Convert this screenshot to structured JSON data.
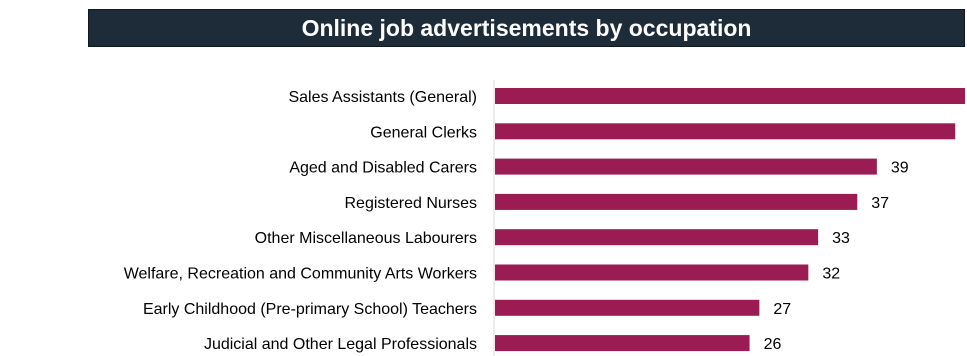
{
  "title": "Online job advertisements by occupation",
  "chart_data": {
    "type": "bar",
    "orientation": "horizontal",
    "title": "Online job advertisements by occupation",
    "categories": [
      "Sales Assistants (General)",
      "General Clerks",
      "Aged and Disabled Carers",
      "Registered Nurses",
      "Other Miscellaneous Labourers",
      "Welfare, Recreation and Community Arts Workers",
      "Early Childhood (Pre-primary School) Teachers",
      "Judicial and Other Legal Professionals"
    ],
    "values": [
      48,
      47,
      39,
      37,
      33,
      32,
      27,
      26
    ],
    "value_labels": [
      "",
      "",
      "39",
      "37",
      "33",
      "32",
      "27",
      "26"
    ],
    "xlim": [
      0,
      48
    ],
    "bar_color": "#9b1b53",
    "grid": false,
    "legend": "none"
  }
}
